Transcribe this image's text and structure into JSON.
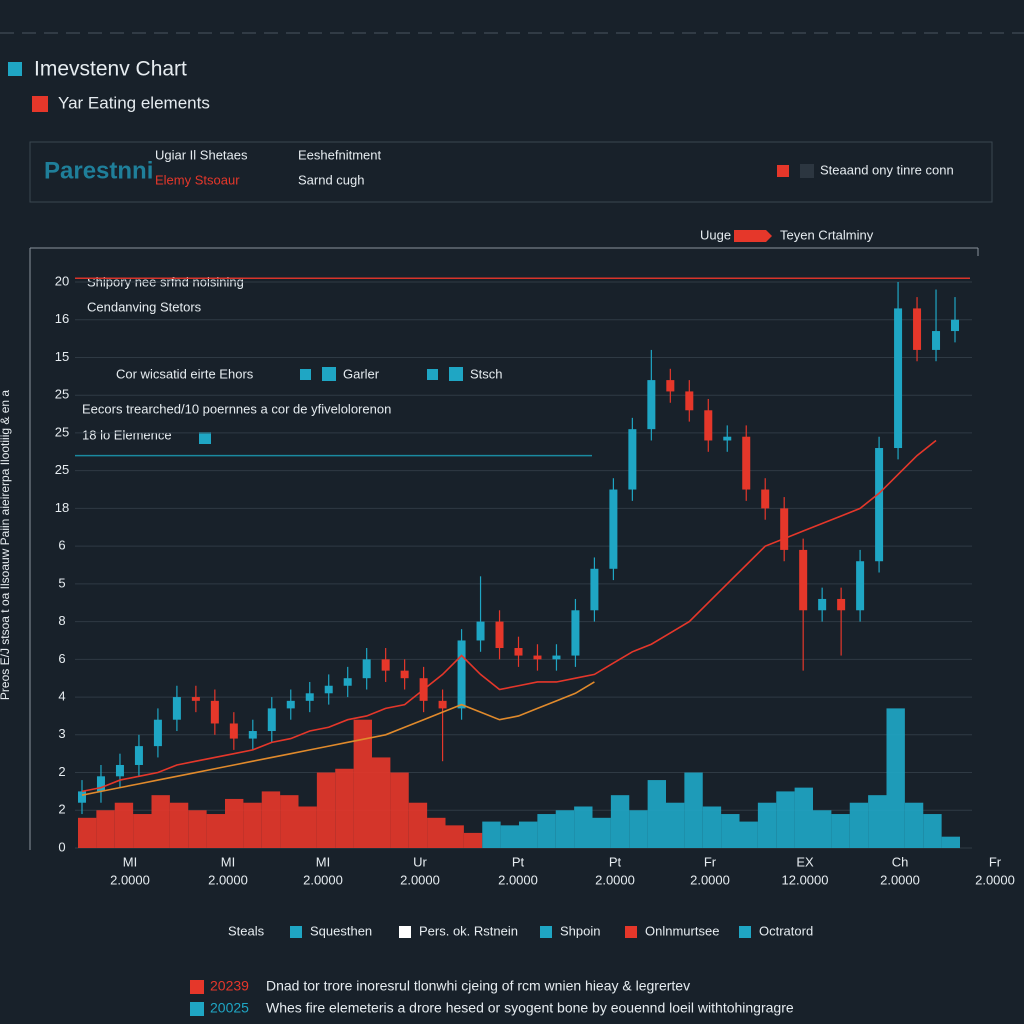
{
  "header": {
    "title": "Imevstenv Chart",
    "subtitle": "Yar Eating elements"
  },
  "info_box": {
    "logo": "Parestnni",
    "line1": "Ugiar Il Shetaes",
    "line2": "Elemy Stsoaur",
    "col2_line1": "Eeshefnitment",
    "col2_line2": "Sarnd cugh",
    "right": "Steaand ony tinre conn"
  },
  "top_legend": {
    "left": "Uuge",
    "right": "Teyen Crtalminy"
  },
  "chart_data": {
    "type": "candlestick",
    "y_label": "Preos E/J stsoa t oa Ilsoauw Paiin aieirerpa Ilootiiig & en a",
    "ylim": [
      0,
      15
    ],
    "yticks": [
      {
        "value": 0,
        "label": "0"
      },
      {
        "value": 1,
        "label": "2"
      },
      {
        "value": 2,
        "label": "2"
      },
      {
        "value": 3,
        "label": "3"
      },
      {
        "value": 4,
        "label": "4"
      },
      {
        "value": 5,
        "label": "6"
      },
      {
        "value": 6,
        "label": "8"
      },
      {
        "value": 7,
        "label": "5"
      },
      {
        "value": 8,
        "label": "6"
      },
      {
        "value": 9,
        "label": "18"
      },
      {
        "value": 10,
        "label": "25"
      },
      {
        "value": 11,
        "label": "25"
      },
      {
        "value": 12,
        "label": "25"
      },
      {
        "value": 13,
        "label": "15"
      },
      {
        "value": 14,
        "label": "16"
      },
      {
        "value": 15,
        "label": "20"
      }
    ],
    "grid": true,
    "up_color": "#1fa6c4",
    "down_color": "#e5372a",
    "open": [
      1.2,
      1.5,
      1.9,
      2.2,
      2.7,
      3.4,
      4.0,
      3.9,
      3.3,
      2.9,
      3.1,
      3.7,
      3.9,
      4.1,
      4.3,
      4.5,
      5.0,
      4.7,
      4.5,
      3.9,
      3.7,
      5.5,
      6.0,
      5.3,
      5.1,
      5.0,
      5.1,
      6.3,
      7.4,
      9.5,
      11.1,
      12.4,
      12.1,
      11.6,
      10.8,
      10.9,
      9.5,
      9.0,
      7.9,
      6.3,
      6.6,
      6.3,
      7.6,
      10.6,
      14.3,
      13.2,
      13.7
    ],
    "high": [
      1.8,
      2.2,
      2.5,
      3.0,
      3.7,
      4.3,
      4.3,
      4.2,
      3.6,
      3.4,
      4.0,
      4.2,
      4.4,
      4.6,
      4.8,
      5.3,
      5.3,
      5.0,
      4.8,
      4.2,
      5.8,
      7.2,
      6.3,
      5.6,
      5.4,
      5.4,
      6.6,
      7.7,
      9.8,
      11.4,
      13.2,
      12.7,
      12.4,
      11.9,
      11.2,
      11.2,
      9.8,
      9.3,
      8.2,
      6.9,
      6.9,
      7.9,
      10.9,
      15.0,
      14.6,
      14.8,
      14.6
    ],
    "low": [
      0.9,
      1.2,
      1.6,
      1.9,
      2.4,
      3.1,
      3.6,
      3.0,
      2.6,
      2.6,
      2.8,
      3.4,
      3.6,
      3.8,
      4.0,
      4.2,
      4.4,
      4.2,
      3.6,
      2.3,
      3.4,
      5.2,
      5.0,
      4.8,
      4.7,
      4.7,
      4.8,
      6.0,
      7.1,
      9.2,
      10.8,
      11.8,
      11.3,
      10.5,
      10.5,
      9.2,
      8.7,
      7.6,
      4.7,
      6.0,
      5.1,
      6.0,
      7.3,
      10.3,
      12.9,
      12.9,
      13.4
    ],
    "close": [
      1.5,
      1.9,
      2.2,
      2.7,
      3.4,
      4.0,
      3.9,
      3.3,
      2.9,
      3.1,
      3.7,
      3.9,
      4.1,
      4.3,
      4.5,
      5.0,
      4.7,
      4.5,
      3.9,
      3.7,
      5.5,
      6.0,
      5.3,
      5.1,
      5.0,
      5.1,
      6.3,
      7.4,
      9.5,
      11.1,
      12.4,
      12.1,
      11.6,
      10.8,
      10.9,
      9.5,
      9.0,
      7.9,
      6.3,
      6.6,
      6.3,
      7.6,
      10.6,
      14.3,
      13.2,
      13.7,
      14.0
    ],
    "volume": [
      {
        "color": "#e5372a",
        "values": [
          0.8,
          1.0,
          1.2,
          0.9,
          1.4,
          1.2,
          1.0,
          0.9,
          1.3,
          1.2,
          1.5,
          1.4,
          1.1,
          2.0,
          2.1,
          3.4,
          2.4,
          2.0,
          1.2,
          0.8,
          0.6,
          0.4
        ]
      },
      {
        "color": "#1fa6c4",
        "values": [
          0.7,
          0.6,
          0.7,
          0.9,
          1.0,
          1.1,
          0.8,
          1.4,
          1.0,
          1.8,
          1.2,
          2.0,
          1.1,
          0.9,
          0.7,
          1.2,
          1.5,
          1.6,
          1.0,
          0.9,
          1.2,
          1.4,
          3.7,
          1.2,
          0.9,
          0.3
        ]
      }
    ],
    "moving_averages": [
      {
        "color": "#e5372a",
        "values": [
          1.5,
          1.6,
          1.8,
          1.9,
          2.0,
          2.2,
          2.3,
          2.4,
          2.5,
          2.6,
          2.8,
          2.9,
          3.1,
          3.2,
          3.4,
          3.5,
          3.7,
          3.8,
          4.2,
          4.6,
          5.1,
          4.6,
          4.2,
          4.3,
          4.4,
          4.4,
          4.5,
          4.6,
          4.9,
          5.2,
          5.4,
          5.7,
          6.0,
          6.5,
          7.0,
          7.5,
          8.0,
          8.2,
          8.4,
          8.6,
          8.8,
          9.0,
          9.4,
          9.9,
          10.4,
          10.8,
          null
        ]
      },
      {
        "color": "#e08a2c",
        "values": [
          1.4,
          1.5,
          1.6,
          1.7,
          1.8,
          1.9,
          2.0,
          2.1,
          2.2,
          2.3,
          2.4,
          2.5,
          2.6,
          2.7,
          2.8,
          2.9,
          3.0,
          3.2,
          3.4,
          3.6,
          3.8,
          3.6,
          3.4,
          3.5,
          3.7,
          3.9,
          4.1,
          4.4,
          null,
          null,
          null,
          null,
          null,
          null,
          null,
          null,
          null,
          null,
          null,
          null,
          null,
          null,
          null,
          null,
          null,
          null,
          null
        ]
      }
    ],
    "reference_lines": [
      {
        "value": 15.1,
        "color": "#d8342a"
      },
      {
        "value": 10.4,
        "color": "#1a8aa0"
      }
    ],
    "annotations": [
      "Shipory nee srfnd nolsining",
      "Cendanving Stetors",
      "Cor wicsatid eirte Ehors",
      "Garler",
      "Stsch",
      "Eecors trearched/10 poernnes a cor de yfivelolorenon",
      "18 lo Elemence"
    ],
    "x_labels": [
      {
        "top": "MI",
        "bottom": "2.0000"
      },
      {
        "top": "MI",
        "bottom": "2.0000"
      },
      {
        "top": "MI",
        "bottom": "2.0000"
      },
      {
        "top": "Ur",
        "bottom": "2.0000"
      },
      {
        "top": "Pt",
        "bottom": "2.0000"
      },
      {
        "top": "Pt",
        "bottom": "2.0000"
      },
      {
        "top": "Fr",
        "bottom": "2.0000"
      },
      {
        "top": "EX",
        "bottom": "12.0000"
      },
      {
        "top": "Ch",
        "bottom": "2.0000"
      },
      {
        "top": "Fr",
        "bottom": "2.0000"
      }
    ]
  },
  "legend": [
    {
      "label": "Steals"
    },
    {
      "label": "Squesthen",
      "color": "#1fa6c4"
    },
    {
      "label": "Pers. ok. Rstnein",
      "color": "#ffffff"
    },
    {
      "label": "Shpoin",
      "color": "#1fa6c4"
    },
    {
      "label": "Onlnmurtsee",
      "color": "#e5372a"
    },
    {
      "label": "Octratord",
      "color": "#1fa6c4"
    }
  ],
  "footer": [
    {
      "code": "20239",
      "color": "#e5372a",
      "text": "Dnad tor trore inoresrul tlonwhi cjeing of rcm wnien hieay & legrertev"
    },
    {
      "code": "20025",
      "color": "#1fa6c4",
      "text": "Whes fire elemeteris a drore hesed or syogent bone by eouennd loeil withtohingragre"
    }
  ]
}
